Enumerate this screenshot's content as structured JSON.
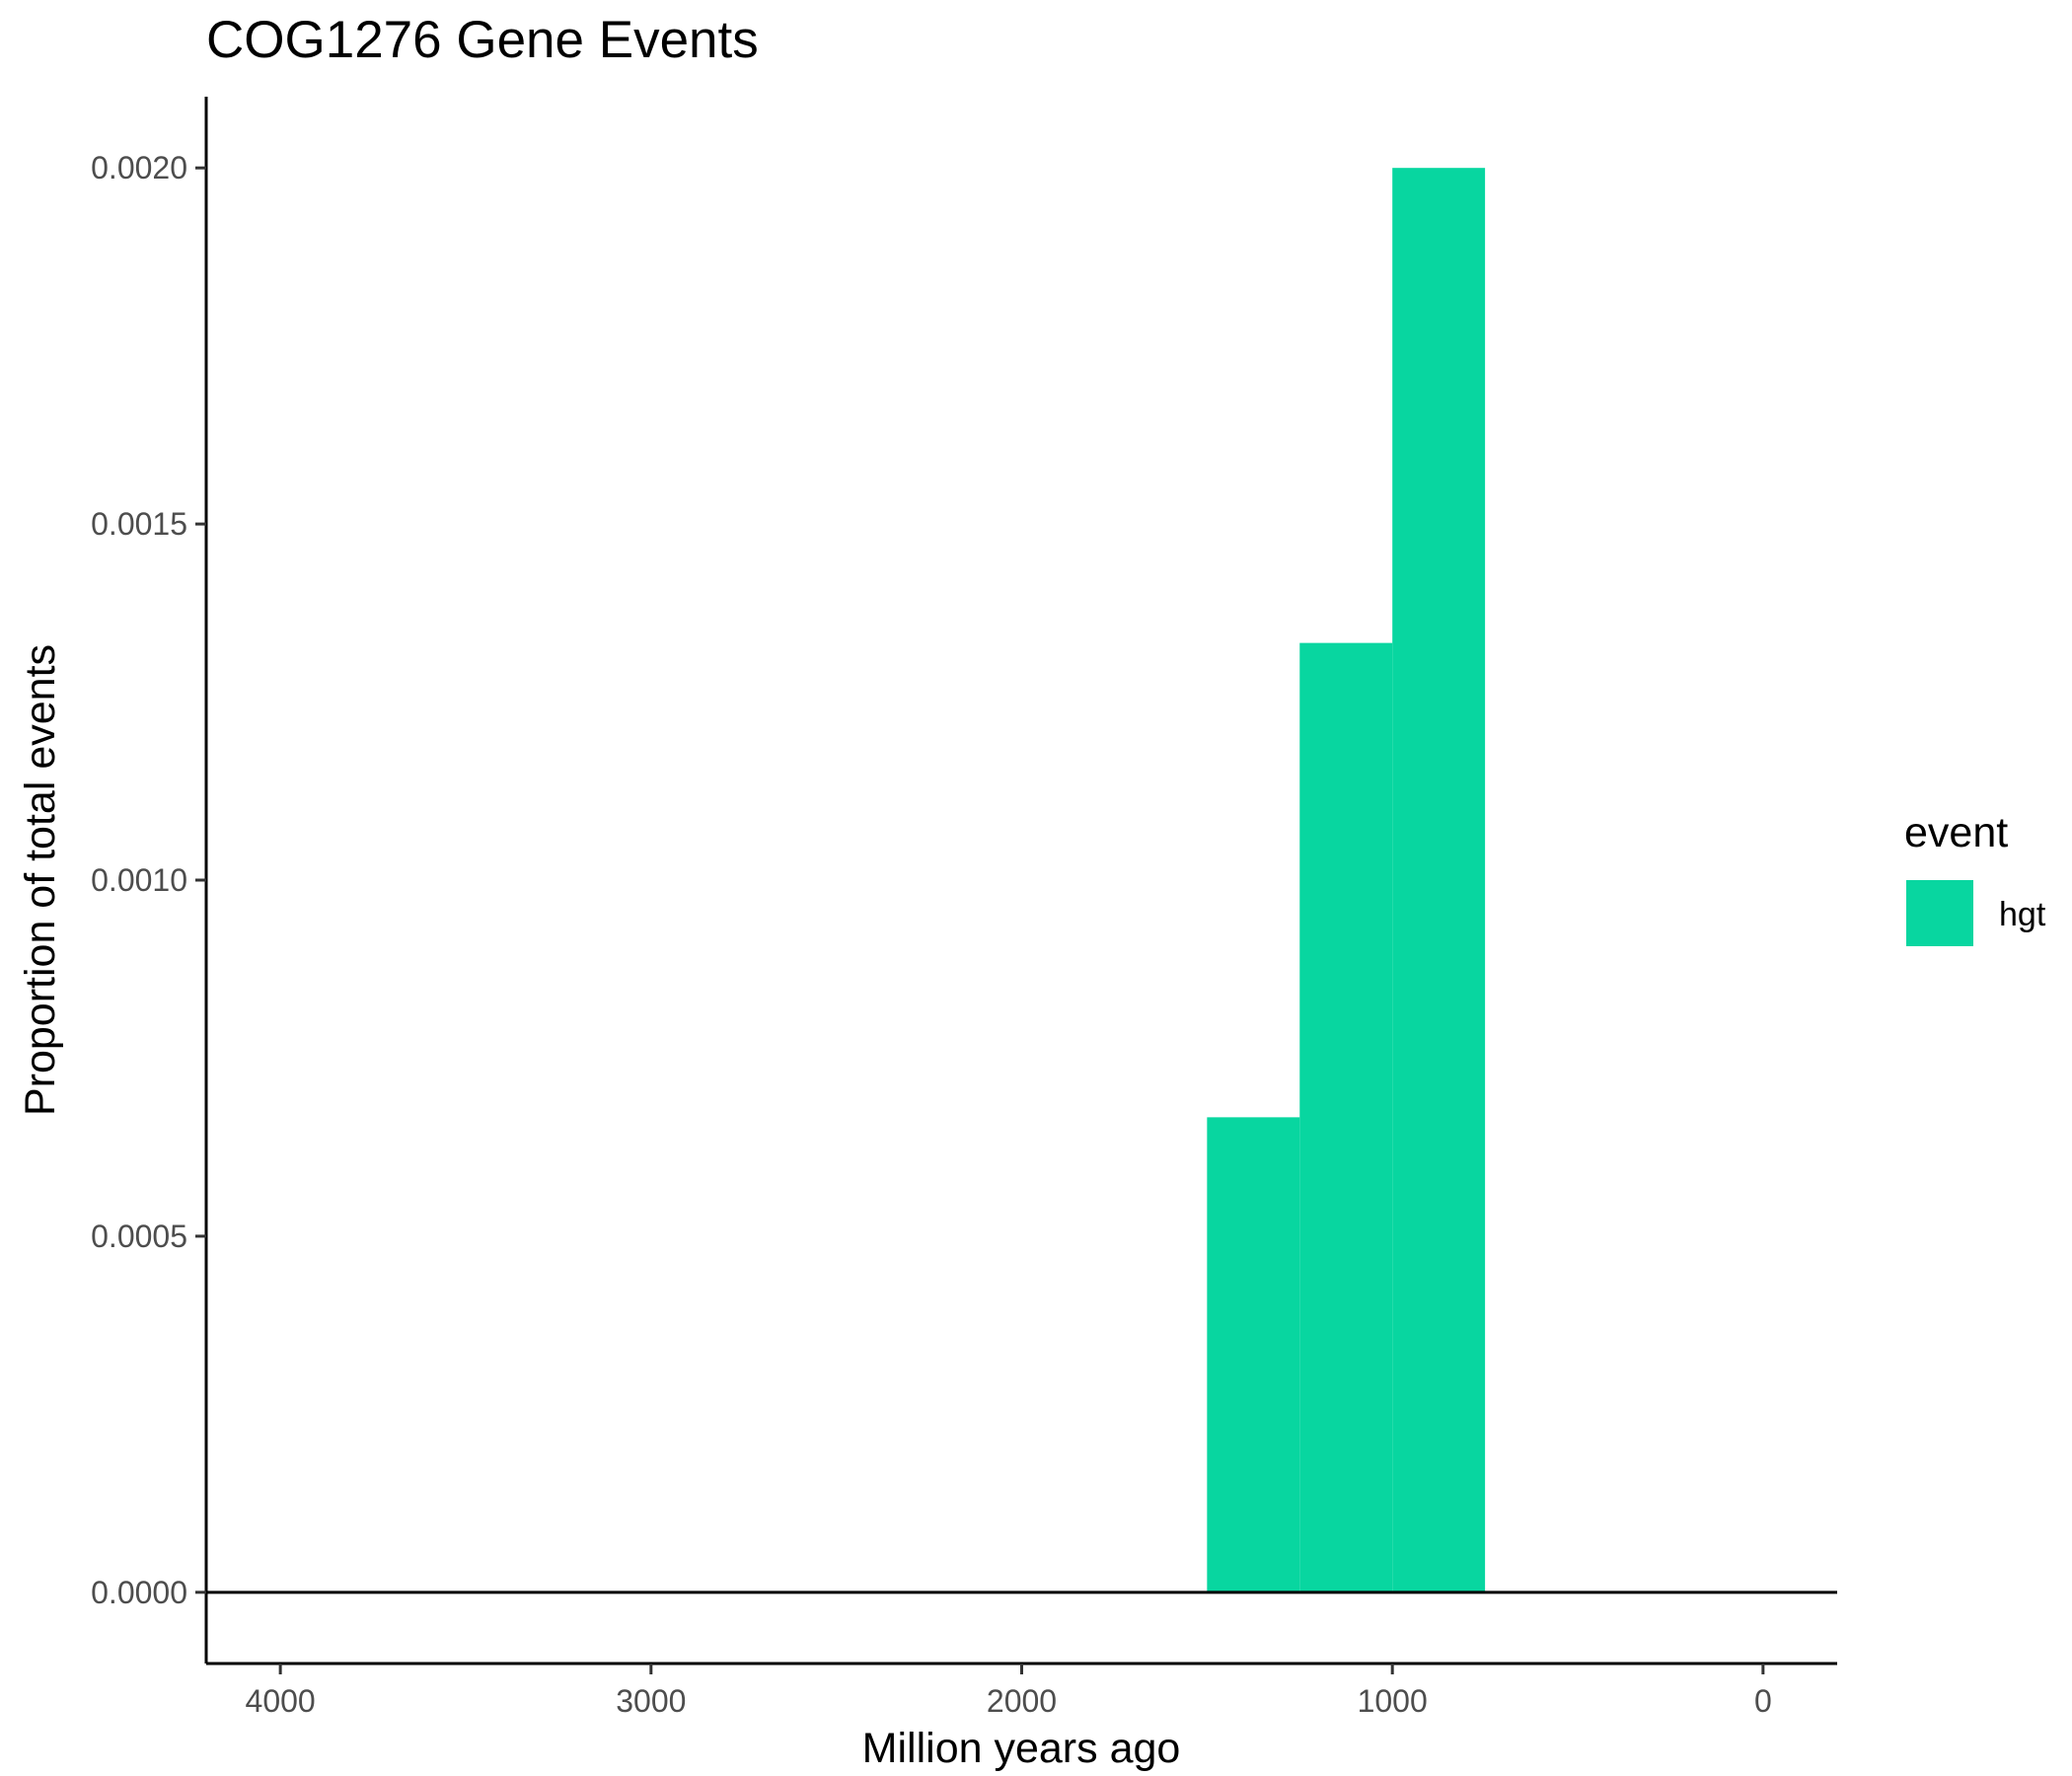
{
  "chart_data": {
    "type": "bar",
    "title": "COG1276 Gene Events",
    "xlabel": "Million years ago",
    "ylabel": "Proportion of total events",
    "x_reversed": true,
    "xlim": [
      4200,
      -200
    ],
    "ylim": [
      -0.0001,
      0.0021
    ],
    "xticks": [
      4000,
      3000,
      2000,
      1000,
      0
    ],
    "xtick_labels": [
      "4000",
      "3000",
      "2000",
      "1000",
      "0"
    ],
    "yticks": [
      0.0,
      0.0005,
      0.001,
      0.0015,
      0.002
    ],
    "ytick_labels": [
      "0.0000",
      "0.0005",
      "0.0010",
      "0.0015",
      "0.0020"
    ],
    "grid": false,
    "legend": {
      "title": "event",
      "placement": "right",
      "entries": [
        {
          "label": "hgt",
          "color": "#08d6a0"
        }
      ]
    },
    "series": [
      {
        "name": "hgt",
        "color": "#08d6a0",
        "bins": [
          {
            "x_start": 1500,
            "x_end": 1250,
            "value": 0.000667
          },
          {
            "x_start": 1250,
            "x_end": 1000,
            "value": 0.001333
          },
          {
            "x_start": 1000,
            "x_end": 750,
            "value": 0.002
          }
        ]
      }
    ]
  }
}
